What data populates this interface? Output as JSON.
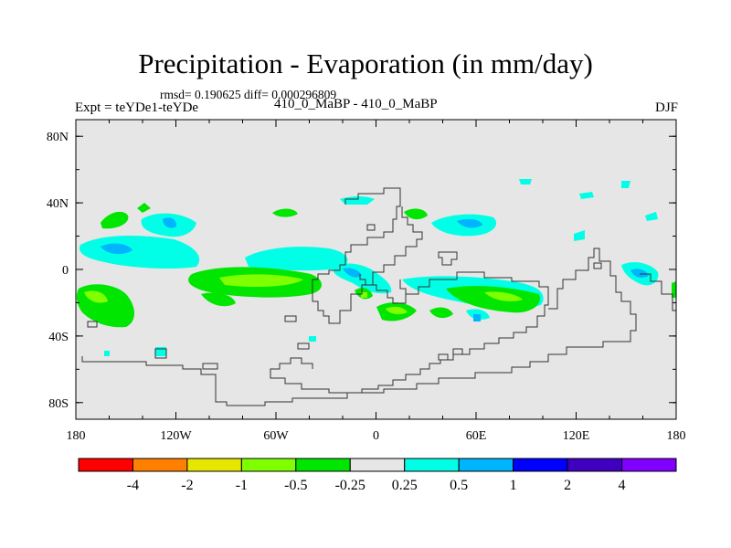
{
  "chart_data": {
    "type": "heatmap",
    "title": "Precipitation - Evaporation (in mm/day)",
    "subtitle_stats": "rmsd= 0.190625 diff= 0.000296809",
    "subtitle_experiment": "Expt = teYDe1-teYDe",
    "subtitle_period": "410_0_MaBP - 410_0_MaBP",
    "season": "DJF",
    "xlabel": "",
    "ylabel": "",
    "x_ticks": [
      "180",
      "120W",
      "60W",
      "0",
      "60E",
      "120E",
      "180"
    ],
    "y_ticks": [
      "80N",
      "40N",
      "0",
      "40S",
      "80S"
    ],
    "xlim": [
      -180,
      180
    ],
    "ylim": [
      -90,
      90
    ],
    "colorbar": {
      "labels": [
        "-4",
        "-2",
        "-1",
        "-0.5",
        "-0.25",
        "0.25",
        "0.5",
        "1",
        "2",
        "4"
      ],
      "colors": [
        "#ff0000",
        "#ff8000",
        "#e6e600",
        "#80ff00",
        "#00e600",
        "#e6e6e6",
        "#00ffe6",
        "#00b4ff",
        "#0000ff",
        "#4000c0",
        "#8000ff"
      ]
    },
    "background_color": "#e6e6e6"
  }
}
